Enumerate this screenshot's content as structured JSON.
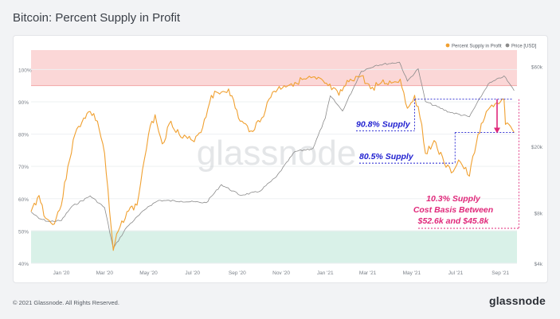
{
  "title": "Bitcoin: Percent Supply in Profit",
  "footer": {
    "copyright": "© 2021 Glassnode. All Rights Reserved.",
    "brand": "glassnode"
  },
  "watermark": "glassnode",
  "colors": {
    "supply_line": "#f0a030",
    "price_line": "#8a8a8a",
    "upper_band": "#fbd7d7",
    "lower_band": "#d9f1e8",
    "annotation_blue": "#1f1fd0",
    "annotation_pink": "#e0287a"
  },
  "chart_data": {
    "type": "line",
    "legend": {
      "placement": "top-right",
      "entries": [
        "Percent Supply in Profit",
        "Price [USD]"
      ]
    },
    "x_ticks": [
      "Jan '20",
      "Mar '20",
      "May '20",
      "Jul '20",
      "Sep '20",
      "Nov '20",
      "Jan '21",
      "Mar '21",
      "May '21",
      "Jul '21",
      "Sep '21"
    ],
    "y_left": {
      "ticks": [
        "40%",
        "50%",
        "60%",
        "70%",
        "80%",
        "90%",
        "100%"
      ],
      "range": [
        40,
        106
      ]
    },
    "y_right": {
      "scale": "log",
      "ticks": [
        "$4k",
        "$8k",
        "$20k",
        "$60k"
      ],
      "range": [
        4000,
        75000
      ]
    },
    "bands": [
      {
        "from": 95,
        "to": 106
      },
      {
        "from": 40,
        "to": 50
      }
    ],
    "x_range": [
      "2019-11-20",
      "2021-09-24"
    ],
    "series": [
      {
        "name": "Percent Supply in Profit",
        "axis": "left",
        "points": [
          [
            "2019-11-20",
            56
          ],
          [
            "2019-12-01",
            61
          ],
          [
            "2019-12-10",
            54
          ],
          [
            "2019-12-20",
            52
          ],
          [
            "2020-01-01",
            58
          ],
          [
            "2020-01-10",
            70
          ],
          [
            "2020-01-20",
            80
          ],
          [
            "2020-02-01",
            85
          ],
          [
            "2020-02-10",
            87
          ],
          [
            "2020-02-20",
            84
          ],
          [
            "2020-03-01",
            74
          ],
          [
            "2020-03-08",
            56
          ],
          [
            "2020-03-13",
            44
          ],
          [
            "2020-03-20",
            50
          ],
          [
            "2020-04-01",
            56
          ],
          [
            "2020-04-15",
            58
          ],
          [
            "2020-04-25",
            72
          ],
          [
            "2020-05-01",
            80
          ],
          [
            "2020-05-10",
            86
          ],
          [
            "2020-05-20",
            77
          ],
          [
            "2020-06-01",
            84
          ],
          [
            "2020-06-15",
            79
          ],
          [
            "2020-07-01",
            78
          ],
          [
            "2020-07-15",
            82
          ],
          [
            "2020-07-27",
            92
          ],
          [
            "2020-08-10",
            93
          ],
          [
            "2020-08-20",
            94
          ],
          [
            "2020-09-05",
            84
          ],
          [
            "2020-09-20",
            81
          ],
          [
            "2020-10-05",
            85
          ],
          [
            "2020-10-20",
            93
          ],
          [
            "2020-11-05",
            95
          ],
          [
            "2020-11-20",
            96
          ],
          [
            "2020-12-05",
            97
          ],
          [
            "2020-12-20",
            97
          ],
          [
            "2021-01-05",
            95
          ],
          [
            "2021-01-20",
            92
          ],
          [
            "2021-02-05",
            97
          ],
          [
            "2021-02-20",
            98
          ],
          [
            "2021-03-05",
            94
          ],
          [
            "2021-03-20",
            96
          ],
          [
            "2021-04-05",
            96
          ],
          [
            "2021-04-15",
            97
          ],
          [
            "2021-04-25",
            88
          ],
          [
            "2021-05-05",
            92
          ],
          [
            "2021-05-15",
            83
          ],
          [
            "2021-05-20",
            74
          ],
          [
            "2021-06-01",
            78
          ],
          [
            "2021-06-15",
            71
          ],
          [
            "2021-06-25",
            68
          ],
          [
            "2021-07-05",
            72
          ],
          [
            "2021-07-20",
            67
          ],
          [
            "2021-08-01",
            80
          ],
          [
            "2021-08-10",
            85
          ],
          [
            "2021-08-20",
            89
          ],
          [
            "2021-09-01",
            90
          ],
          [
            "2021-09-06",
            90.8
          ],
          [
            "2021-09-08",
            83
          ],
          [
            "2021-09-20",
            80.5
          ]
        ]
      },
      {
        "name": "Price [USD]",
        "axis": "right",
        "points": [
          [
            "2019-11-20",
            8100
          ],
          [
            "2019-12-01",
            7400
          ],
          [
            "2019-12-15",
            7100
          ],
          [
            "2020-01-01",
            7200
          ],
          [
            "2020-01-15",
            8700
          ],
          [
            "2020-02-10",
            10100
          ],
          [
            "2020-03-01",
            8600
          ],
          [
            "2020-03-13",
            4900
          ],
          [
            "2020-04-01",
            6600
          ],
          [
            "2020-04-30",
            8700
          ],
          [
            "2020-05-15",
            9500
          ],
          [
            "2020-06-15",
            9400
          ],
          [
            "2020-07-20",
            9200
          ],
          [
            "2020-08-10",
            11800
          ],
          [
            "2020-09-05",
            10200
          ],
          [
            "2020-10-01",
            10700
          ],
          [
            "2020-10-25",
            13100
          ],
          [
            "2020-11-20",
            18600
          ],
          [
            "2020-12-15",
            19400
          ],
          [
            "2021-01-01",
            29400
          ],
          [
            "2021-01-08",
            40000
          ],
          [
            "2021-01-25",
            32500
          ],
          [
            "2021-02-20",
            56000
          ],
          [
            "2021-03-13",
            61000
          ],
          [
            "2021-04-14",
            63500
          ],
          [
            "2021-04-25",
            49000
          ],
          [
            "2021-05-10",
            58000
          ],
          [
            "2021-05-20",
            37000
          ],
          [
            "2021-06-22",
            32000
          ],
          [
            "2021-07-20",
            30000
          ],
          [
            "2021-08-15",
            47000
          ],
          [
            "2021-09-06",
            52600
          ],
          [
            "2021-09-20",
            43000
          ]
        ]
      }
    ],
    "annotations": [
      {
        "text": "90.8% Supply",
        "color": "blue",
        "value": 90.8,
        "date_from": "2021-05-05",
        "date_to": "2021-09-06"
      },
      {
        "text": "80.5% Supply",
        "color": "blue",
        "value": 80.5,
        "date_from": "2021-07-20",
        "date_to": "2021-09-20"
      },
      {
        "lines": [
          "10.3% Supply",
          "Cost Basis Between",
          "$52.6k and $45.8k"
        ],
        "color": "pink",
        "value_top": 90.8,
        "value_bottom": 80.5
      }
    ]
  }
}
